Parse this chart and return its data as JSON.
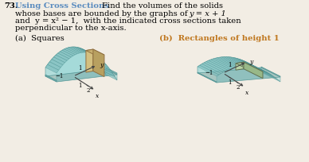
{
  "problem_number": "73.",
  "title": "Using Cross Sections",
  "title_color": "#5b8cbf",
  "body_line1": "Find the volumes of the solids",
  "body_line2": "whose bases are bounded by the graphs of",
  "body_line2b": "y = x + 1",
  "body_line3": "and",
  "body_line3b": "y = x² − 1,",
  "body_line3c": "with the indicated cross sections taken",
  "body_line4": "perpendicular to the",
  "body_line4b": "x",
  "body_line4c": "-axis.",
  "part_a": "(a)  Squares",
  "part_b": "(b)  Rectangles of height 1",
  "part_b_color": "#c07820",
  "bg_color": "#f2ede4",
  "teal_light": "#9dd8d8",
  "teal_mid": "#7bbcbc",
  "teal_dark": "#5fa0a0",
  "teal_edge": "#4a9090",
  "gold_front": "#d4c080",
  "gold_side": "#b8a060",
  "gold_top": "#c8b070",
  "gold_edge": "#907040",
  "green_front": "#b8d4a8",
  "green_side": "#98b888",
  "green_top": "#a8c498",
  "green_edge": "#607050"
}
